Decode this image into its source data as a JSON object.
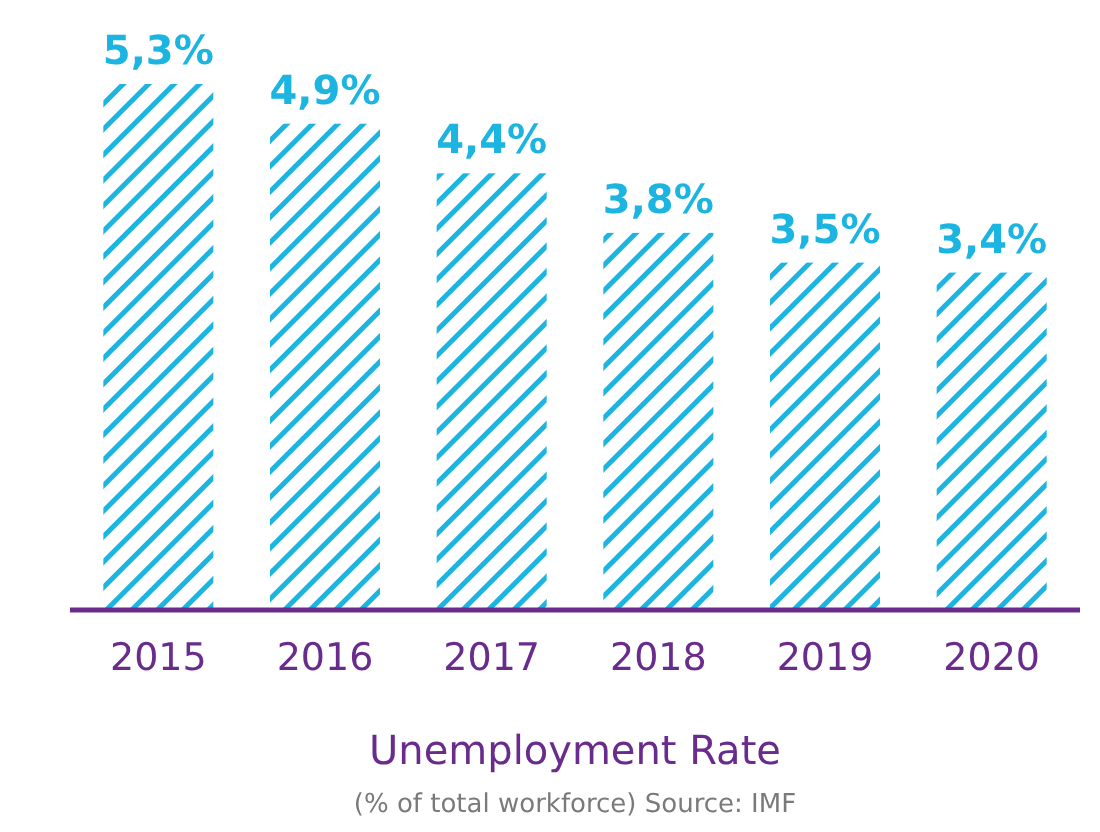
{
  "chart_data": {
    "type": "bar",
    "title": "Unemployment Rate",
    "categories": [
      "2015",
      "2016",
      "2017",
      "2018",
      "2019",
      "2020"
    ],
    "values": [
      5.3,
      4.9,
      4.4,
      3.8,
      3.5,
      3.4
    ],
    "value_labels": [
      "5,3%",
      "4,9%",
      "4,4%",
      "3,8%",
      "3,5%",
      "3,4%"
    ],
    "color": "#1cb4e0",
    "annotations": [
      "(% of total workforce) Source: IMF"
    ]
  }
}
